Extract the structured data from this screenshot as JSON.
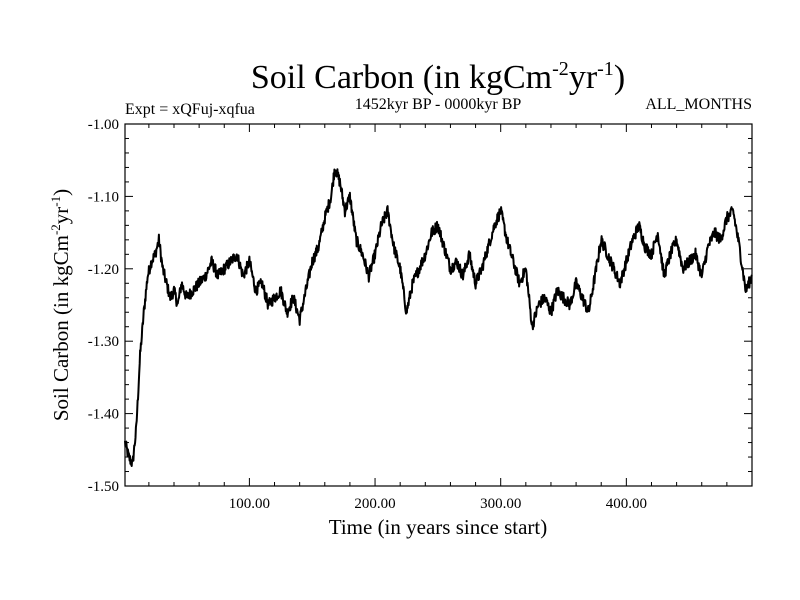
{
  "chart_data": {
    "type": "line",
    "title": "Soil Carbon (in kgCm",
    "title_exp1": "-2",
    "title_mid": "yr",
    "title_exp2": "-1",
    "title_end": ")",
    "left_label": "Expt = xQFuj-xqfua",
    "center_label": "1452kyr BP - 0000kyr BP",
    "right_label": "ALL_MONTHS",
    "xlabel": "Time (in years since start)",
    "ylabel": "Soil Carbon (in kgCm",
    "ylabel_exp1": "-2",
    "ylabel_mid": "yr",
    "ylabel_exp2": "-1",
    "ylabel_end": ")",
    "xlim": [
      1,
      500
    ],
    "ylim": [
      -1.5,
      -1.0
    ],
    "xticks": [
      100,
      200,
      300,
      400
    ],
    "xtick_labels": [
      "100.00",
      "200.00",
      "300.00",
      "400.00"
    ],
    "yticks": [
      -1.5,
      -1.4,
      -1.3,
      -1.2,
      -1.1,
      -1.0
    ],
    "ytick_labels": [
      "-1.50",
      "-1.40",
      "-1.30",
      "-1.20",
      "-1.10",
      "-1.00"
    ],
    "grid": false,
    "series": [
      {
        "name": "Soil Carbon",
        "color": "#000000",
        "x": [
          1,
          4,
          7,
          10,
          13,
          16,
          19,
          22,
          25,
          28,
          31,
          34,
          37,
          40,
          43,
          46,
          50,
          55,
          60,
          65,
          70,
          75,
          80,
          85,
          90,
          95,
          100,
          105,
          110,
          115,
          120,
          125,
          130,
          135,
          140,
          145,
          150,
          155,
          160,
          165,
          168,
          172,
          176,
          180,
          185,
          190,
          195,
          200,
          205,
          210,
          215,
          220,
          225,
          230,
          235,
          240,
          245,
          250,
          255,
          260,
          265,
          270,
          275,
          280,
          285,
          290,
          295,
          300,
          305,
          310,
          315,
          320,
          325,
          330,
          335,
          340,
          345,
          350,
          355,
          360,
          365,
          370,
          375,
          380,
          385,
          390,
          395,
          400,
          405,
          410,
          415,
          420,
          425,
          430,
          435,
          440,
          445,
          450,
          455,
          460,
          465,
          470,
          475,
          480,
          485,
          490,
          495,
          500
        ],
        "values": [
          -1.44,
          -1.46,
          -1.47,
          -1.42,
          -1.32,
          -1.26,
          -1.21,
          -1.19,
          -1.18,
          -1.16,
          -1.2,
          -1.22,
          -1.24,
          -1.23,
          -1.25,
          -1.22,
          -1.24,
          -1.23,
          -1.22,
          -1.21,
          -1.19,
          -1.21,
          -1.2,
          -1.19,
          -1.18,
          -1.21,
          -1.19,
          -1.23,
          -1.22,
          -1.25,
          -1.24,
          -1.23,
          -1.26,
          -1.24,
          -1.27,
          -1.23,
          -1.19,
          -1.17,
          -1.13,
          -1.1,
          -1.06,
          -1.08,
          -1.12,
          -1.1,
          -1.16,
          -1.18,
          -1.21,
          -1.18,
          -1.14,
          -1.12,
          -1.17,
          -1.2,
          -1.26,
          -1.22,
          -1.2,
          -1.18,
          -1.15,
          -1.14,
          -1.17,
          -1.2,
          -1.19,
          -1.21,
          -1.18,
          -1.22,
          -1.2,
          -1.17,
          -1.14,
          -1.12,
          -1.16,
          -1.19,
          -1.22,
          -1.2,
          -1.28,
          -1.25,
          -1.24,
          -1.26,
          -1.23,
          -1.24,
          -1.25,
          -1.22,
          -1.24,
          -1.26,
          -1.21,
          -1.16,
          -1.18,
          -1.2,
          -1.22,
          -1.19,
          -1.16,
          -1.14,
          -1.17,
          -1.18,
          -1.15,
          -1.21,
          -1.18,
          -1.16,
          -1.2,
          -1.19,
          -1.18,
          -1.21,
          -1.17,
          -1.15,
          -1.16,
          -1.13,
          -1.12,
          -1.17,
          -1.23,
          -1.21
        ]
      }
    ]
  }
}
